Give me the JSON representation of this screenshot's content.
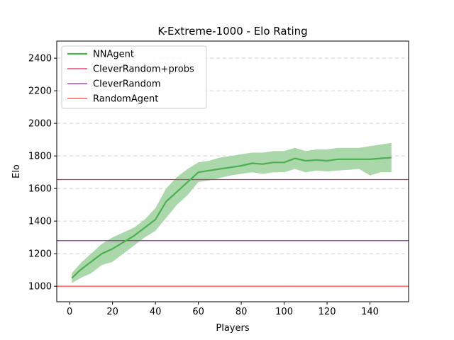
{
  "chart_data": {
    "type": "line",
    "title": "K-Extreme-1000 - Elo Rating",
    "xlabel": "Players",
    "ylabel": "Elo",
    "xlim": [
      -6,
      158
    ],
    "ylim": [
      905,
      2505
    ],
    "x_ticks": [
      "0",
      "20",
      "40",
      "60",
      "80",
      "100",
      "120",
      "140"
    ],
    "y_ticks": [
      "1000",
      "1200",
      "1400",
      "1600",
      "1800",
      "2000",
      "2200",
      "2400"
    ],
    "grid": "horizontal dashed",
    "legend_position": "top-left",
    "colors": {
      "NNAgent": "#4caf50",
      "NNAgent_band": "#a5d6a7",
      "CleverRandom+probs": "#e91e63",
      "CleverRandom": "#9c27b0",
      "RandomAgent": "#f44336"
    },
    "series": [
      {
        "name": "NNAgent",
        "kind": "line_with_band",
        "x": [
          1,
          5,
          10,
          15,
          20,
          25,
          30,
          35,
          40,
          45,
          50,
          55,
          60,
          65,
          70,
          75,
          80,
          85,
          90,
          95,
          100,
          105,
          110,
          115,
          120,
          125,
          130,
          135,
          140,
          145,
          150
        ],
        "values": [
          1050,
          1100,
          1150,
          1200,
          1230,
          1270,
          1310,
          1360,
          1410,
          1520,
          1580,
          1640,
          1700,
          1710,
          1720,
          1730,
          1740,
          1755,
          1750,
          1760,
          1760,
          1785,
          1770,
          1775,
          1770,
          1780,
          1780,
          1780,
          1780,
          1785,
          1790
        ],
        "lower": [
          1020,
          1050,
          1080,
          1130,
          1150,
          1200,
          1250,
          1300,
          1340,
          1420,
          1500,
          1560,
          1640,
          1650,
          1665,
          1680,
          1690,
          1700,
          1690,
          1700,
          1700,
          1720,
          1700,
          1710,
          1705,
          1710,
          1715,
          1720,
          1680,
          1700,
          1700
        ],
        "upper": [
          1080,
          1140,
          1200,
          1260,
          1300,
          1330,
          1360,
          1410,
          1480,
          1600,
          1670,
          1720,
          1760,
          1770,
          1790,
          1800,
          1810,
          1820,
          1820,
          1830,
          1830,
          1850,
          1830,
          1840,
          1840,
          1850,
          1850,
          1850,
          1860,
          1870,
          1880
        ]
      },
      {
        "name": "CleverRandom+probs",
        "kind": "hline",
        "value": 1655
      },
      {
        "name": "CleverRandom",
        "kind": "hline",
        "value": 1280
      },
      {
        "name": "RandomAgent",
        "kind": "hline",
        "value": 1000
      }
    ]
  }
}
